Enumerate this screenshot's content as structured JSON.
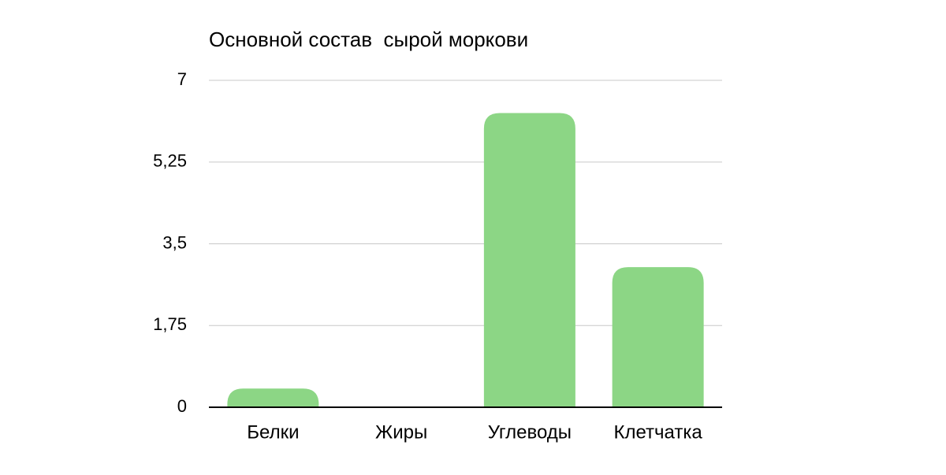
{
  "chart_data": {
    "type": "bar",
    "title": "Основной состав  сырой моркови",
    "categories": [
      "Белки",
      "Жиры",
      "Углеводы",
      "Клетчатка"
    ],
    "values": [
      0.4,
      0,
      6.3,
      3
    ],
    "color": "#8cd685",
    "ylim": [
      0,
      7
    ],
    "yticks": [
      0,
      {
        "value": 1.75,
        "label": "1,75"
      },
      {
        "value": 3.5,
        "label": "3,5"
      },
      {
        "value": 5.25,
        "label": "5,25"
      },
      7
    ],
    "grid": true
  }
}
